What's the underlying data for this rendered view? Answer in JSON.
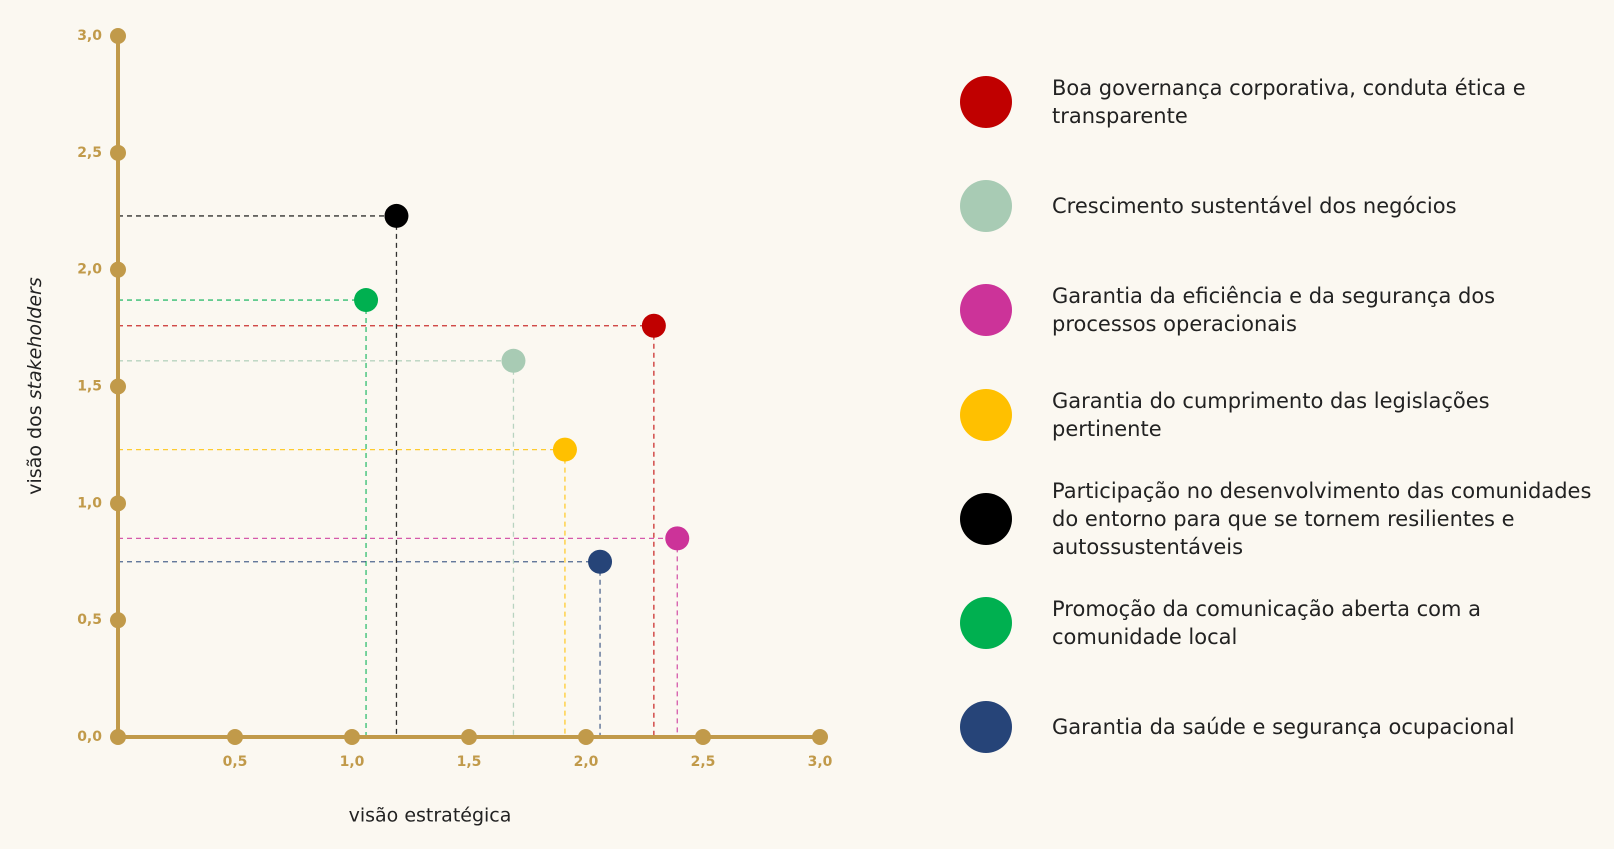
{
  "chart_data": {
    "type": "scatter",
    "xlabel": "visão estratégica",
    "ylabel": [
      "visão dos ",
      "stakeholders"
    ],
    "xlim": [
      0,
      3
    ],
    "ylim": [
      0,
      3
    ],
    "xticks": [
      {
        "value": 0.5,
        "label": "0,5"
      },
      {
        "value": 1,
        "label": "1,0"
      },
      {
        "value": 1.5,
        "label": "1,5"
      },
      {
        "value": 2,
        "label": "2,0"
      },
      {
        "value": 2.5,
        "label": "2,5"
      },
      {
        "value": 3,
        "label": "3,0"
      }
    ],
    "yticks": [
      {
        "value": 0,
        "label": "0,0"
      },
      {
        "value": 0.5,
        "label": "0,5"
      },
      {
        "value": 1,
        "label": "1,0"
      },
      {
        "value": 1.5,
        "label": "1,5"
      },
      {
        "value": 2,
        "label": "2,0"
      },
      {
        "value": 2.5,
        "label": "2,5"
      },
      {
        "value": 3,
        "label": "3,0"
      }
    ],
    "axis_color": "#c19a4a",
    "series": [
      {
        "name": "Boa governança corporativa, conduta ética e transparente",
        "color": "#c00000",
        "x": [
          2.29
        ],
        "values": [
          1.76
        ]
      },
      {
        "name": "Crescimento sustentável dos negócios",
        "color": "#a8cbb4",
        "x": [
          1.69
        ],
        "values": [
          1.61
        ]
      },
      {
        "name": "Garantia da eficiência e da segurança dos processos operacionais",
        "color": "#cc3399",
        "x": [
          2.39
        ],
        "values": [
          0.85
        ]
      },
      {
        "name": "Garantia do cumprimento das legislações pertinente",
        "color": "#ffc000",
        "x": [
          1.91
        ],
        "values": [
          1.23
        ]
      },
      {
        "name": "Participação no desenvolvimento das comunidades do entorno para que se tornem resilientes e autossustentáveis",
        "color": "#000000",
        "x": [
          1.19
        ],
        "values": [
          2.23
        ]
      },
      {
        "name": "Promoção da comunicação aberta com a comunidade local",
        "color": "#00b050",
        "x": [
          1.06
        ],
        "values": [
          1.87
        ]
      },
      {
        "name": "Garantia da saúde e segurança ocupacional",
        "color": "#264478",
        "x": [
          2.06
        ],
        "values": [
          0.75
        ]
      }
    ]
  }
}
